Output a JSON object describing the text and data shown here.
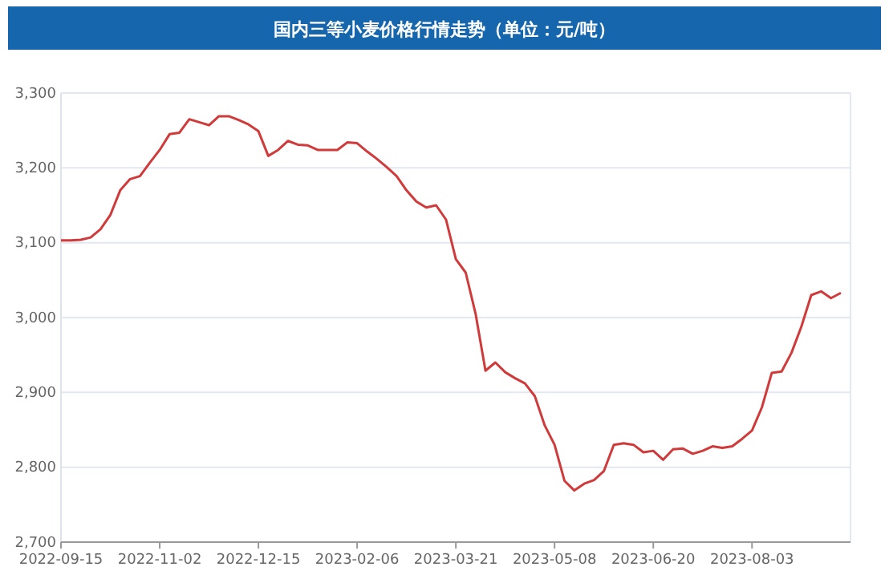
{
  "chart_data": {
    "type": "line",
    "title": "国内三等小麦价格行情走势（单位：元/吨）",
    "categories": [
      "2022-09-15",
      null,
      null,
      null,
      null,
      null,
      null,
      null,
      null,
      null,
      "2022-11-02",
      null,
      null,
      null,
      null,
      null,
      null,
      null,
      null,
      null,
      "2022-12-15",
      null,
      null,
      null,
      null,
      null,
      null,
      null,
      null,
      null,
      "2023-02-06",
      null,
      null,
      null,
      null,
      null,
      null,
      null,
      null,
      null,
      "2023-03-21",
      null,
      null,
      null,
      null,
      null,
      null,
      null,
      null,
      null,
      "2023-05-08",
      null,
      null,
      null,
      null,
      null,
      null,
      null,
      null,
      null,
      "2023-06-20",
      null,
      null,
      null,
      null,
      null,
      null,
      null,
      null,
      null,
      "2023-08-03",
      null,
      null,
      null,
      null,
      null,
      null,
      null,
      null,
      null
    ],
    "series": [
      {
        "color": "#d03a3a",
        "values": [
          3103,
          3103,
          3104,
          3107,
          3118,
          3137,
          3170,
          3185,
          3189,
          3207,
          3224,
          3245,
          3247,
          3265,
          3261,
          3257,
          3269,
          3269,
          3264,
          3258,
          3249,
          3216,
          3224,
          3236,
          3231,
          3230,
          3224,
          3224,
          3224,
          3234,
          3233,
          3222,
          3212,
          3201,
          3189,
          3170,
          3155,
          3147,
          3150,
          3131,
          3078,
          3060,
          3005,
          2929,
          2940,
          2927,
          2919,
          2912,
          2895,
          2856,
          2830,
          2782,
          2769,
          2778,
          2783,
          2795,
          2830,
          2832,
          2830,
          2820,
          2822,
          2810,
          2824,
          2825,
          2818,
          2822,
          2828,
          2826,
          2828,
          2838,
          2849,
          2880,
          2926,
          2928,
          2953,
          2988,
          3030,
          3035,
          3026,
          3033
        ]
      }
    ],
    "ylim": [
      2700,
      3300
    ],
    "yticks": [
      {
        "value": 2700,
        "label": "2,700"
      },
      {
        "value": 2800,
        "label": "2,800"
      },
      {
        "value": 2900,
        "label": "2,900"
      },
      {
        "value": 3000,
        "label": "3,000"
      },
      {
        "value": 3100,
        "label": "3,100"
      },
      {
        "value": 3200,
        "label": "3,200"
      },
      {
        "value": 3300,
        "label": "3,300"
      }
    ],
    "grid": "y",
    "marker": "none",
    "line_style": "solid"
  }
}
